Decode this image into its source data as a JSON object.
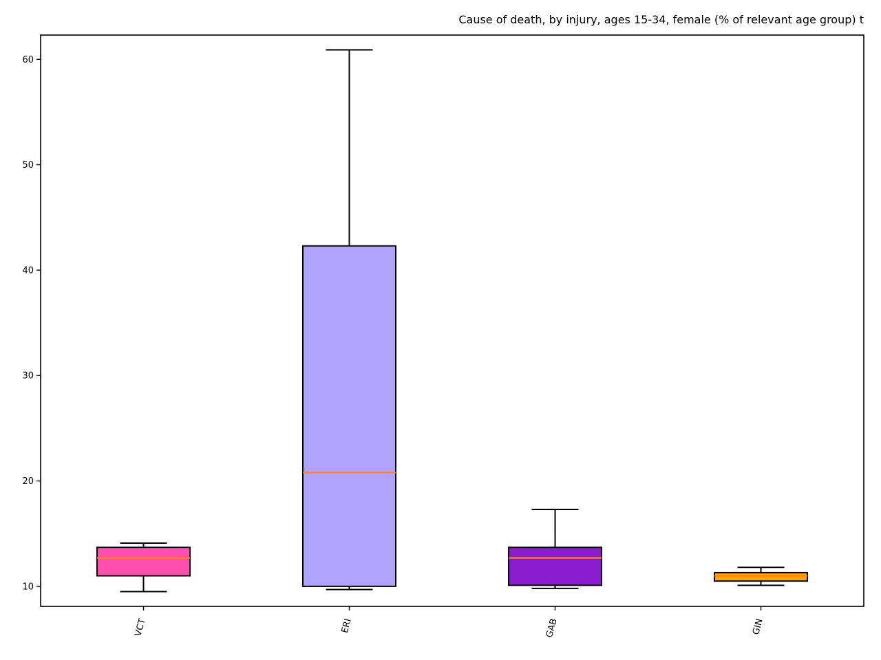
{
  "chart_data": {
    "type": "box",
    "title": "Cause of death, by injury, ages 15-34, female  (% of relevant age group) t",
    "xlabel": "",
    "ylabel": "",
    "ylim": [
      8.1,
      62.3
    ],
    "yticks": [
      10,
      20,
      30,
      40,
      50,
      60
    ],
    "grid": false,
    "legend": "none",
    "boxes": [
      {
        "label": "VCT",
        "whisker_low": 9.5,
        "q1": 11.0,
        "median": 12.7,
        "q3": 13.7,
        "whisker_high": 14.1,
        "color": "#ff4fae"
      },
      {
        "label": "ERI",
        "whisker_low": 9.7,
        "q1": 10.0,
        "median": 20.8,
        "q3": 42.3,
        "whisker_high": 60.9,
        "color": "#b0a3ff"
      },
      {
        "label": "GAB",
        "whisker_low": 9.8,
        "q1": 10.1,
        "median": 12.7,
        "q3": 13.7,
        "whisker_high": 17.3,
        "color": "#8a1bce"
      },
      {
        "label": "GIN",
        "whisker_low": 10.1,
        "q1": 10.5,
        "median": 11.0,
        "q3": 11.3,
        "whisker_high": 11.8,
        "color": "#ffa500"
      }
    ],
    "median_color": "#ff7f2a"
  }
}
